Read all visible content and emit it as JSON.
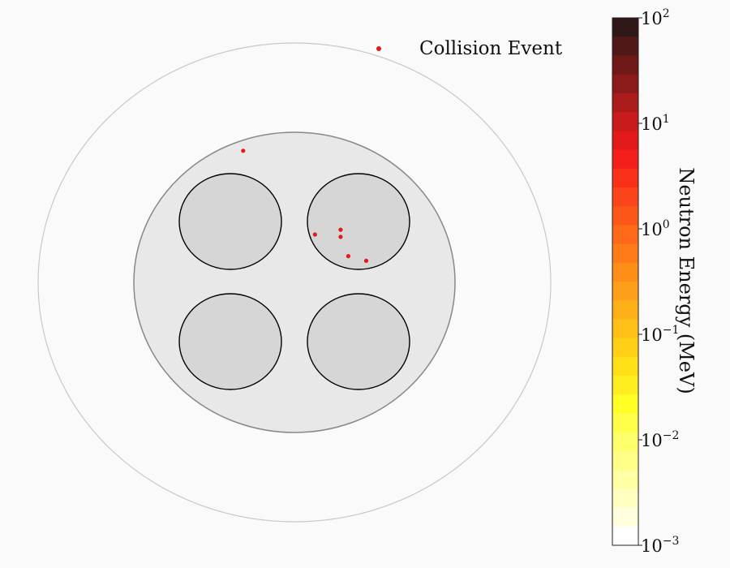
{
  "chart_data": {
    "type": "scatter",
    "title": "",
    "legend": {
      "label": "Collision Event",
      "placement": "top-right",
      "marker_color": "#e31a1c"
    },
    "geometry": {
      "outer_boundary": {
        "shape": "ellipse",
        "fill": "none",
        "stroke": "#c8c8c8"
      },
      "inner_region": {
        "shape": "ellipse",
        "fill": "#e8e8e8",
        "stroke": "#888888"
      },
      "fuel_pins": [
        {
          "id": "top-left",
          "fill": "#d6d6d6",
          "stroke": "#000000"
        },
        {
          "id": "top-right",
          "fill": "#d6d6d6",
          "stroke": "#000000"
        },
        {
          "id": "bottom-left",
          "fill": "#d6d6d6",
          "stroke": "#000000"
        },
        {
          "id": "bottom-right",
          "fill": "#d6d6d6",
          "stroke": "#000000"
        }
      ]
    },
    "xlim": [
      -1.0,
      1.0
    ],
    "ylim": [
      -1.0,
      1.0
    ],
    "series": [
      {
        "name": "Collision Event",
        "color": "#e31a1c",
        "x": [
          -0.2,
          0.08,
          0.18,
          0.18,
          0.21,
          0.28
        ],
        "y": [
          0.55,
          0.2,
          0.22,
          0.19,
          0.11,
          0.09
        ]
      }
    ],
    "colorbar": {
      "label": "Neutron Energy (MeV)",
      "scale": "log",
      "range": [
        0.001,
        100
      ],
      "ticks": [
        {
          "base": "10",
          "exp": "2",
          "value": 100
        },
        {
          "base": "10",
          "exp": "1",
          "value": 10
        },
        {
          "base": "10",
          "exp": "0",
          "value": 1
        },
        {
          "base": "10",
          "exp": "−1",
          "value": 0.1
        },
        {
          "base": "10",
          "exp": "−2",
          "value": 0.01
        },
        {
          "base": "10",
          "exp": "−3",
          "value": 0.001
        }
      ],
      "colors_top_to_bottom": [
        "#2e1716",
        "#501818",
        "#6e1818",
        "#8c1a1a",
        "#ab1b1b",
        "#c91b1b",
        "#e31a1c",
        "#f41f1a",
        "#fa2f18",
        "#fb4419",
        "#fd5619",
        "#fe6919",
        "#fe7b18",
        "#fd8e18",
        "#fd9f18",
        "#feb018",
        "#ffc017",
        "#ffcf17",
        "#ffe017",
        "#ffee1f",
        "#ffff26",
        "#ffff4a",
        "#ffff6b",
        "#ffff88",
        "#ffffa4",
        "#ffffc2",
        "#ffffde",
        "#ffffff"
      ]
    }
  }
}
